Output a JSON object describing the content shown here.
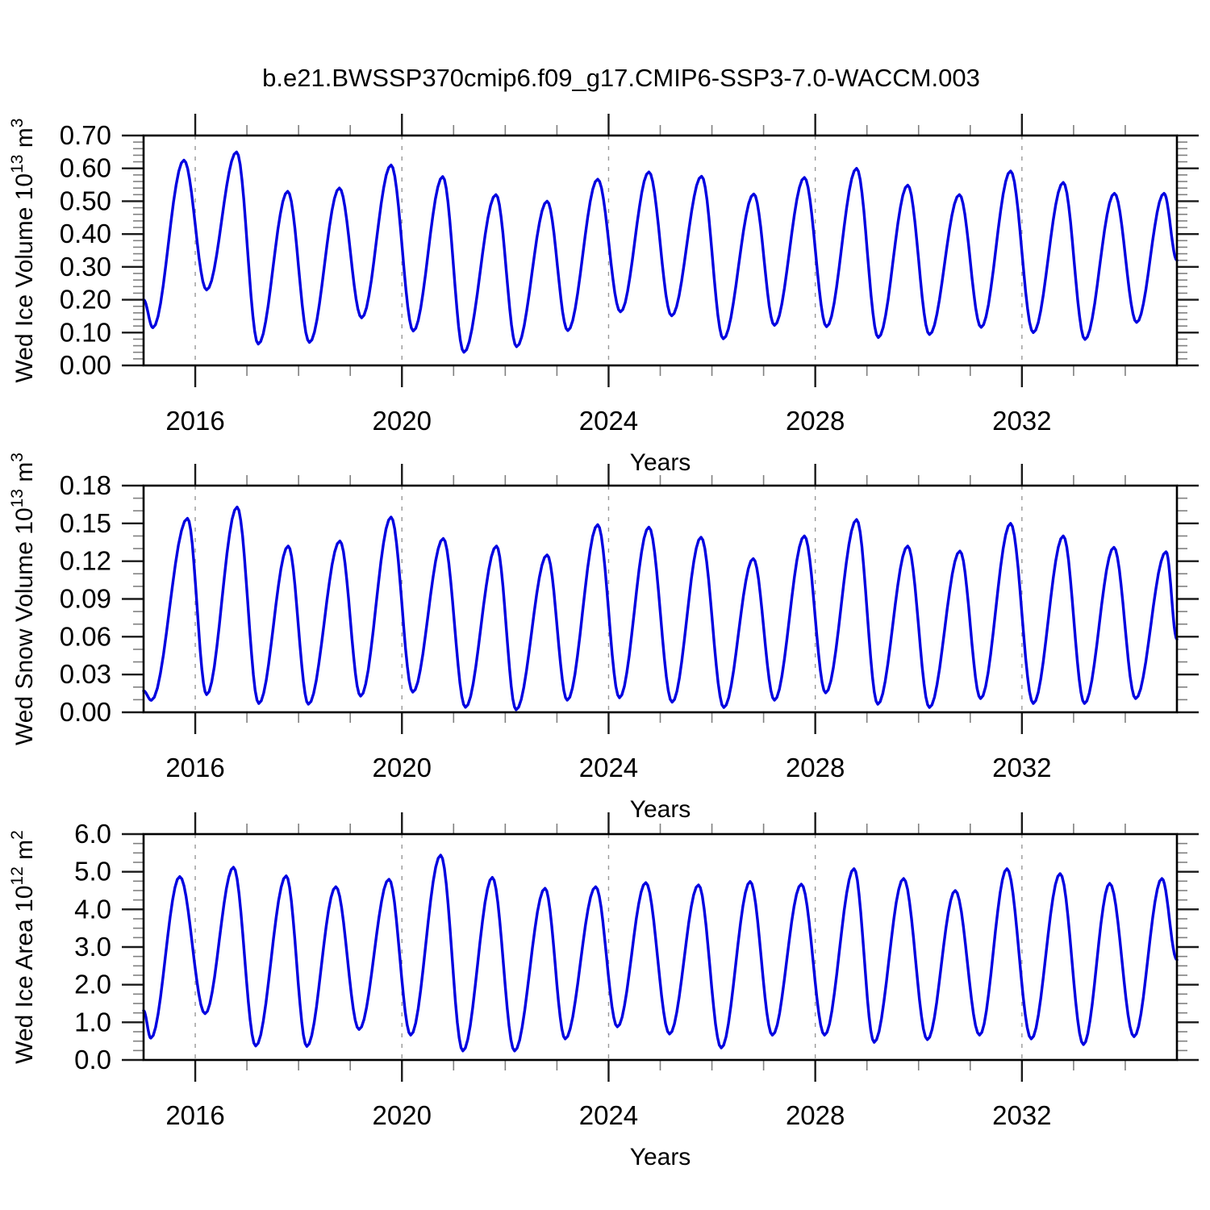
{
  "title": "b.e21.BWSSP370cmip6.f09_g17.CMIP6-SSP3-7.0-WACCM.003",
  "line_color": "#0000E0",
  "grid_color": "#999999",
  "chart_data": [
    {
      "type": "line",
      "panel": "top",
      "ylabel_text": "Wed Ice Volume 10^13 m^3",
      "ylabel_parts": [
        [
          "t",
          "Wed Ice Volume 10"
        ],
        [
          "s",
          "13"
        ],
        [
          "t",
          " m"
        ],
        [
          "s",
          "3"
        ]
      ],
      "xlabel": "Years",
      "xlim": [
        2015,
        2035
      ],
      "ylim": [
        0.0,
        0.7
      ],
      "ytick_labels": [
        "0.00",
        "0.10",
        "0.20",
        "0.30",
        "0.40",
        "0.50",
        "0.60",
        "0.70"
      ],
      "ytick_step": 0.1,
      "yminor_step": 0.02,
      "xtick_labels": [
        "2016",
        "2020",
        "2024",
        "2028",
        "2032"
      ],
      "xticks": [
        2016,
        2020,
        2024,
        2028,
        2032
      ],
      "xminor_step": 1,
      "grid_on": true,
      "legend": "none",
      "series": [
        {
          "name": "Wed Ice Volume",
          "note": "monthly seasonal cycle; keypoints are [year, value] at successive minima/maxima read from plot",
          "keypoints": [
            [
              2015.0,
              0.2
            ],
            [
              2015.18,
              0.115
            ],
            [
              2015.78,
              0.625
            ],
            [
              2016.22,
              0.23
            ],
            [
              2016.8,
              0.65
            ],
            [
              2017.22,
              0.065
            ],
            [
              2017.79,
              0.53
            ],
            [
              2018.21,
              0.07
            ],
            [
              2018.79,
              0.54
            ],
            [
              2019.22,
              0.145
            ],
            [
              2019.79,
              0.61
            ],
            [
              2020.22,
              0.105
            ],
            [
              2020.79,
              0.575
            ],
            [
              2021.2,
              0.04
            ],
            [
              2021.82,
              0.52
            ],
            [
              2022.22,
              0.057
            ],
            [
              2022.81,
              0.5
            ],
            [
              2023.21,
              0.106
            ],
            [
              2023.79,
              0.567
            ],
            [
              2024.23,
              0.163
            ],
            [
              2024.78,
              0.589
            ],
            [
              2025.22,
              0.151
            ],
            [
              2025.8,
              0.576
            ],
            [
              2026.22,
              0.081
            ],
            [
              2026.81,
              0.522
            ],
            [
              2027.21,
              0.122
            ],
            [
              2027.79,
              0.572
            ],
            [
              2028.22,
              0.118
            ],
            [
              2028.8,
              0.6
            ],
            [
              2029.22,
              0.085
            ],
            [
              2029.79,
              0.549
            ],
            [
              2030.21,
              0.094
            ],
            [
              2030.79,
              0.52
            ],
            [
              2031.21,
              0.116
            ],
            [
              2031.78,
              0.592
            ],
            [
              2032.22,
              0.1
            ],
            [
              2032.8,
              0.557
            ],
            [
              2033.22,
              0.079
            ],
            [
              2033.79,
              0.524
            ],
            [
              2034.22,
              0.131
            ],
            [
              2034.75,
              0.524
            ],
            [
              2035.0,
              0.32
            ]
          ]
        }
      ]
    },
    {
      "type": "line",
      "panel": "middle",
      "ylabel_text": "Wed Snow Volume 10^13 m^3",
      "ylabel_parts": [
        [
          "t",
          "Wed Snow Volume 10"
        ],
        [
          "s",
          "13"
        ],
        [
          "t",
          " m"
        ],
        [
          "s",
          "3"
        ]
      ],
      "xlabel": "Years",
      "xlim": [
        2015,
        2035
      ],
      "ylim": [
        0.0,
        0.18
      ],
      "ytick_labels": [
        "0.00",
        "0.03",
        "0.06",
        "0.09",
        "0.12",
        "0.15",
        "0.18"
      ],
      "ytick_step": 0.03,
      "yminor_step": 0.01,
      "xtick_labels": [
        "2016",
        "2020",
        "2024",
        "2028",
        "2032"
      ],
      "xticks": [
        2016,
        2020,
        2024,
        2028,
        2032
      ],
      "xminor_step": 1,
      "grid_on": true,
      "legend": "none",
      "series": [
        {
          "name": "Wed Snow Volume",
          "note": "monthly seasonal cycle; keypoints are [year, value] at successive minima/maxima read from plot",
          "keypoints": [
            [
              2015.0,
              0.017
            ],
            [
              2015.15,
              0.0095
            ],
            [
              2015.85,
              0.154
            ],
            [
              2016.22,
              0.014
            ],
            [
              2016.81,
              0.163
            ],
            [
              2017.23,
              0.007
            ],
            [
              2017.8,
              0.132
            ],
            [
              2018.19,
              0.0064
            ],
            [
              2018.8,
              0.136
            ],
            [
              2019.2,
              0.0128
            ],
            [
              2019.79,
              0.155
            ],
            [
              2020.21,
              0.016
            ],
            [
              2020.8,
              0.138
            ],
            [
              2021.23,
              0.004
            ],
            [
              2021.83,
              0.132
            ],
            [
              2022.21,
              0.002
            ],
            [
              2022.81,
              0.125
            ],
            [
              2023.2,
              0.0096
            ],
            [
              2023.79,
              0.149
            ],
            [
              2024.21,
              0.0115
            ],
            [
              2024.78,
              0.147
            ],
            [
              2025.23,
              0.008
            ],
            [
              2025.79,
              0.139
            ],
            [
              2026.23,
              0.0038
            ],
            [
              2026.8,
              0.122
            ],
            [
              2027.21,
              0.0096
            ],
            [
              2027.79,
              0.14
            ],
            [
              2028.2,
              0.0154
            ],
            [
              2028.8,
              0.153
            ],
            [
              2029.21,
              0.0064
            ],
            [
              2029.79,
              0.132
            ],
            [
              2030.21,
              0.0038
            ],
            [
              2030.8,
              0.128
            ],
            [
              2031.2,
              0.0109
            ],
            [
              2031.78,
              0.15
            ],
            [
              2032.22,
              0.007
            ],
            [
              2032.8,
              0.14
            ],
            [
              2033.21,
              0.007
            ],
            [
              2033.78,
              0.131
            ],
            [
              2034.2,
              0.0109
            ],
            [
              2034.79,
              0.1275
            ],
            [
              2035.0,
              0.058
            ]
          ]
        }
      ]
    },
    {
      "type": "line",
      "panel": "bottom",
      "ylabel_text": "Wed Ice Area 10^12 m^2",
      "ylabel_parts": [
        [
          "t",
          "Wed Ice Area 10"
        ],
        [
          "s",
          "12"
        ],
        [
          "t",
          " m"
        ],
        [
          "s",
          "2"
        ]
      ],
      "xlabel": "Years",
      "xlim": [
        2015,
        2035
      ],
      "ylim": [
        0.0,
        6.0
      ],
      "ytick_labels": [
        "0.0",
        "1.0",
        "2.0",
        "3.0",
        "4.0",
        "5.0",
        "6.0"
      ],
      "ytick_step": 1.0,
      "yminor_step": 0.25,
      "xtick_labels": [
        "2016",
        "2020",
        "2024",
        "2028",
        "2032"
      ],
      "xticks": [
        2016,
        2020,
        2024,
        2028,
        2032
      ],
      "xminor_step": 1,
      "grid_on": true,
      "legend": "none",
      "series": [
        {
          "name": "Wed Ice Area",
          "note": "monthly seasonal cycle; keypoints are [year, value] at successive minima/maxima read from plot",
          "keypoints": [
            [
              2015.0,
              1.31
            ],
            [
              2015.14,
              0.58
            ],
            [
              2015.7,
              4.87
            ],
            [
              2016.19,
              1.23
            ],
            [
              2016.74,
              5.12
            ],
            [
              2017.17,
              0.37
            ],
            [
              2017.76,
              4.89
            ],
            [
              2018.16,
              0.36
            ],
            [
              2018.72,
              4.6
            ],
            [
              2019.17,
              0.81
            ],
            [
              2019.75,
              4.8
            ],
            [
              2020.17,
              0.66
            ],
            [
              2020.75,
              5.44
            ],
            [
              2021.18,
              0.24
            ],
            [
              2021.75,
              4.85
            ],
            [
              2022.18,
              0.24
            ],
            [
              2022.77,
              4.56
            ],
            [
              2023.16,
              0.56
            ],
            [
              2023.75,
              4.6
            ],
            [
              2024.17,
              0.88
            ],
            [
              2024.72,
              4.71
            ],
            [
              2025.18,
              0.69
            ],
            [
              2025.74,
              4.65
            ],
            [
              2026.18,
              0.32
            ],
            [
              2026.74,
              4.74
            ],
            [
              2027.17,
              0.66
            ],
            [
              2027.73,
              4.67
            ],
            [
              2028.18,
              0.66
            ],
            [
              2028.75,
              5.08
            ],
            [
              2029.14,
              0.47
            ],
            [
              2029.71,
              4.82
            ],
            [
              2030.17,
              0.54
            ],
            [
              2030.71,
              4.5
            ],
            [
              2031.18,
              0.66
            ],
            [
              2031.71,
              5.08
            ],
            [
              2032.18,
              0.56
            ],
            [
              2032.74,
              4.95
            ],
            [
              2033.19,
              0.41
            ],
            [
              2033.7,
              4.69
            ],
            [
              2034.17,
              0.62
            ],
            [
              2034.71,
              4.82
            ],
            [
              2035.0,
              2.66
            ]
          ]
        }
      ]
    }
  ]
}
